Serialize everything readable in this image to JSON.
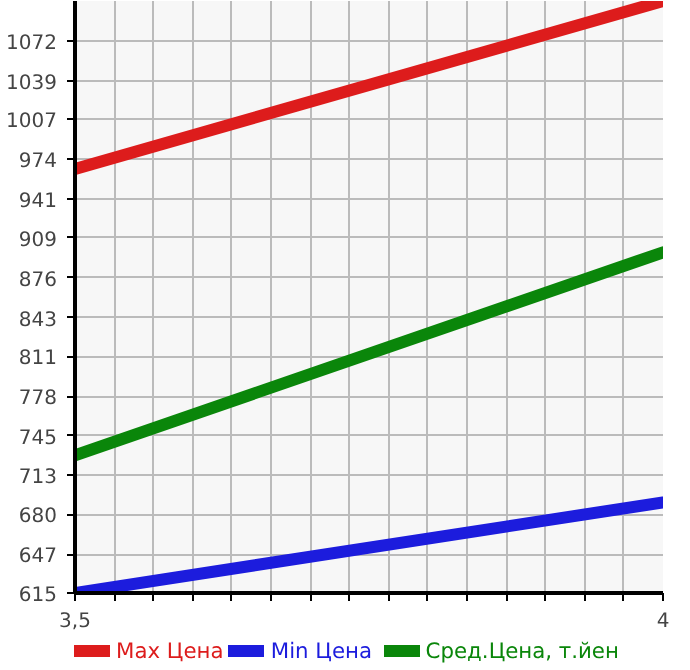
{
  "chart_data": {
    "type": "line",
    "x": [
      3.5,
      4
    ],
    "series": [
      {
        "name": "Max Цена",
        "color": "#dd1c1c",
        "values": [
          966,
          1105
        ]
      },
      {
        "name": "Min Цена",
        "color": "#1c1cdd",
        "values": [
          615,
          690
        ]
      },
      {
        "name": "Сред.Цена, т.йен",
        "color": "#0a860a",
        "values": [
          729,
          897
        ]
      }
    ],
    "xlim": [
      3.5,
      4
    ],
    "xticks": [
      {
        "value": 3.5,
        "label": "3,5"
      },
      {
        "value": 3.5333,
        "label": null
      },
      {
        "value": 3.5667,
        "label": null
      },
      {
        "value": 3.6,
        "label": null
      },
      {
        "value": 3.6333,
        "label": null
      },
      {
        "value": 3.6667,
        "label": null
      },
      {
        "value": 3.7,
        "label": null
      },
      {
        "value": 3.7333,
        "label": null
      },
      {
        "value": 3.7667,
        "label": null
      },
      {
        "value": 3.8,
        "label": null
      },
      {
        "value": 3.8333,
        "label": null
      },
      {
        "value": 3.8667,
        "label": null
      },
      {
        "value": 3.9,
        "label": null
      },
      {
        "value": 3.9333,
        "label": null
      },
      {
        "value": 3.9667,
        "label": null
      },
      4
    ],
    "ylim": [
      615,
      1105
    ],
    "yticks": [
      615,
      647,
      680,
      713,
      745,
      778,
      811,
      843,
      876,
      909,
      941,
      974,
      1007,
      1039,
      1072
    ],
    "grid": true,
    "legend": "bottom",
    "marker": "none",
    "line_style": "solid"
  }
}
